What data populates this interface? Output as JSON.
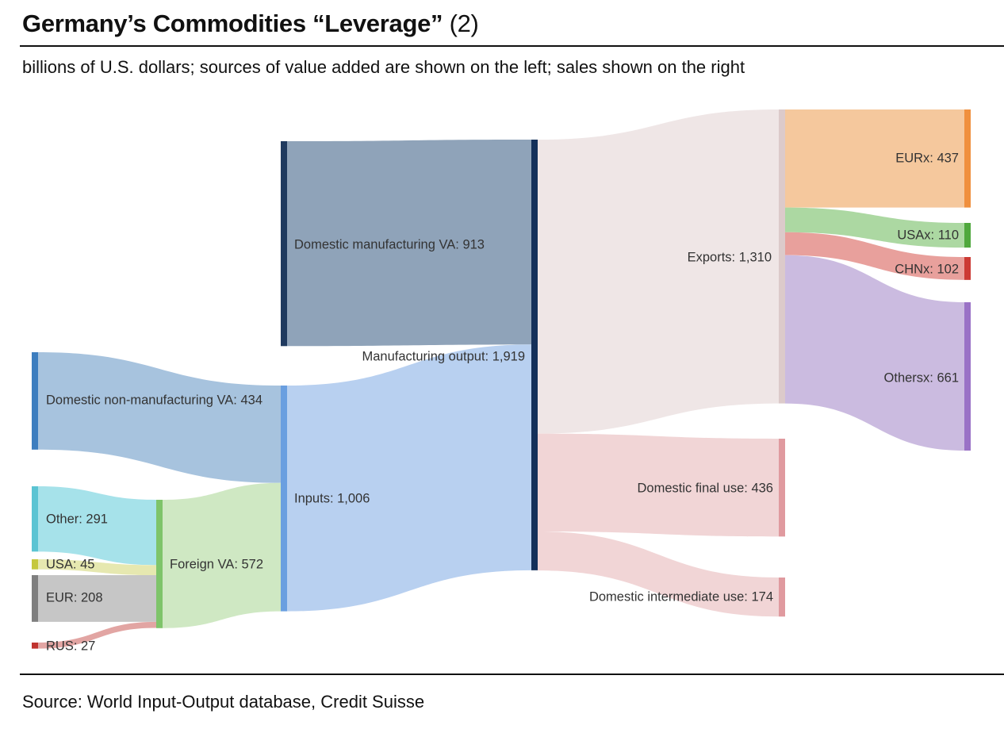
{
  "header": {
    "title": "Germany’s Commodities “Leverage”",
    "title_suffix": "(2)",
    "subtitle": "billions of U.S. dollars; sources of value added are shown on the left; sales shown on the right"
  },
  "footer": {
    "source": "Source: World Input-Output database, Credit Suisse"
  },
  "chart_data": {
    "type": "sankey",
    "units": "billions of U.S. dollars",
    "nodes": [
      {
        "id": "dom_nonmfg",
        "label": "Domestic non-manufacturing VA: 434",
        "name": "Domestic non-manufacturing VA",
        "value": 434,
        "color": "#3d7ebf"
      },
      {
        "id": "other",
        "label": "Other: 291",
        "name": "Other",
        "value": 291,
        "color": "#5bc4d3"
      },
      {
        "id": "usa",
        "label": "USA: 45",
        "name": "USA",
        "value": 45,
        "color": "#c5c83d"
      },
      {
        "id": "eur",
        "label": "EUR: 208",
        "name": "EUR",
        "value": 208,
        "color": "#7f7f7f"
      },
      {
        "id": "rus",
        "label": "RUS: 27",
        "name": "RUS",
        "value": 27,
        "color": "#c0332f"
      },
      {
        "id": "foreign",
        "label": "Foreign VA: 572",
        "name": "Foreign VA",
        "value": 572,
        "color": "#7ec46a"
      },
      {
        "id": "dom_mfg",
        "label": "Domestic manufacturing VA: 913",
        "name": "Domestic manufacturing VA",
        "value": 913,
        "color": "#1f3a5f"
      },
      {
        "id": "inputs",
        "label": "Inputs: 1,006",
        "name": "Inputs",
        "value": 1006,
        "color": "#6a9fe0"
      },
      {
        "id": "mfg_output",
        "label": "Manufacturing output: 1,919",
        "name": "Manufacturing output",
        "value": 1919,
        "color": "#14305a"
      },
      {
        "id": "exports",
        "label": "Exports: 1,310",
        "name": "Exports",
        "value": 1310,
        "color": "#dccaca"
      },
      {
        "id": "dom_final",
        "label": "Domestic final use: 436",
        "name": "Domestic final use",
        "value": 436,
        "color": "#e09a9f"
      },
      {
        "id": "dom_inter",
        "label": "Domestic intermediate use: 174",
        "name": "Domestic intermediate use",
        "value": 174,
        "color": "#e09a9f"
      },
      {
        "id": "eurx",
        "label": "EURx: 437",
        "name": "EURx",
        "value": 437,
        "color": "#f0903e"
      },
      {
        "id": "usax",
        "label": "USAx: 110",
        "name": "USAx",
        "value": 110,
        "color": "#4fa83d"
      },
      {
        "id": "chnx",
        "label": "CHNx: 102",
        "name": "CHNx",
        "value": 102,
        "color": "#cc3a34"
      },
      {
        "id": "othersx",
        "label": "Othersx: 661",
        "name": "Othersx",
        "value": 661,
        "color": "#9a72c6"
      }
    ],
    "links": [
      {
        "source": "other",
        "target": "foreign",
        "value": 291,
        "color": "#a6e2ea"
      },
      {
        "source": "usa",
        "target": "foreign",
        "value": 45,
        "color": "#e6e8b0"
      },
      {
        "source": "eur",
        "target": "foreign",
        "value": 208,
        "color": "#c6c6c6"
      },
      {
        "source": "rus",
        "target": "foreign",
        "value": 27,
        "color": "#e2a5a3"
      },
      {
        "source": "dom_nonmfg",
        "target": "inputs",
        "value": 434,
        "color": "#a7c3de"
      },
      {
        "source": "foreign",
        "target": "inputs",
        "value": 572,
        "color": "#cfe8c3"
      },
      {
        "source": "dom_mfg",
        "target": "mfg_output",
        "value": 913,
        "color": "#8fa3b9"
      },
      {
        "source": "inputs",
        "target": "mfg_output",
        "value": 1006,
        "color": "#b8d0f0"
      },
      {
        "source": "mfg_output",
        "target": "exports",
        "value": 1310,
        "color": "#efe6e6"
      },
      {
        "source": "mfg_output",
        "target": "dom_final",
        "value": 436,
        "color": "#f1d5d6"
      },
      {
        "source": "mfg_output",
        "target": "dom_inter",
        "value": 174,
        "color": "#f1d5d6"
      },
      {
        "source": "exports",
        "target": "eurx",
        "value": 437,
        "color": "#f5c89d"
      },
      {
        "source": "exports",
        "target": "usax",
        "value": 110,
        "color": "#acd8a2"
      },
      {
        "source": "exports",
        "target": "chnx",
        "value": 102,
        "color": "#e8a09c"
      },
      {
        "source": "exports",
        "target": "othersx",
        "value": 661,
        "color": "#cbbbe0"
      }
    ]
  }
}
